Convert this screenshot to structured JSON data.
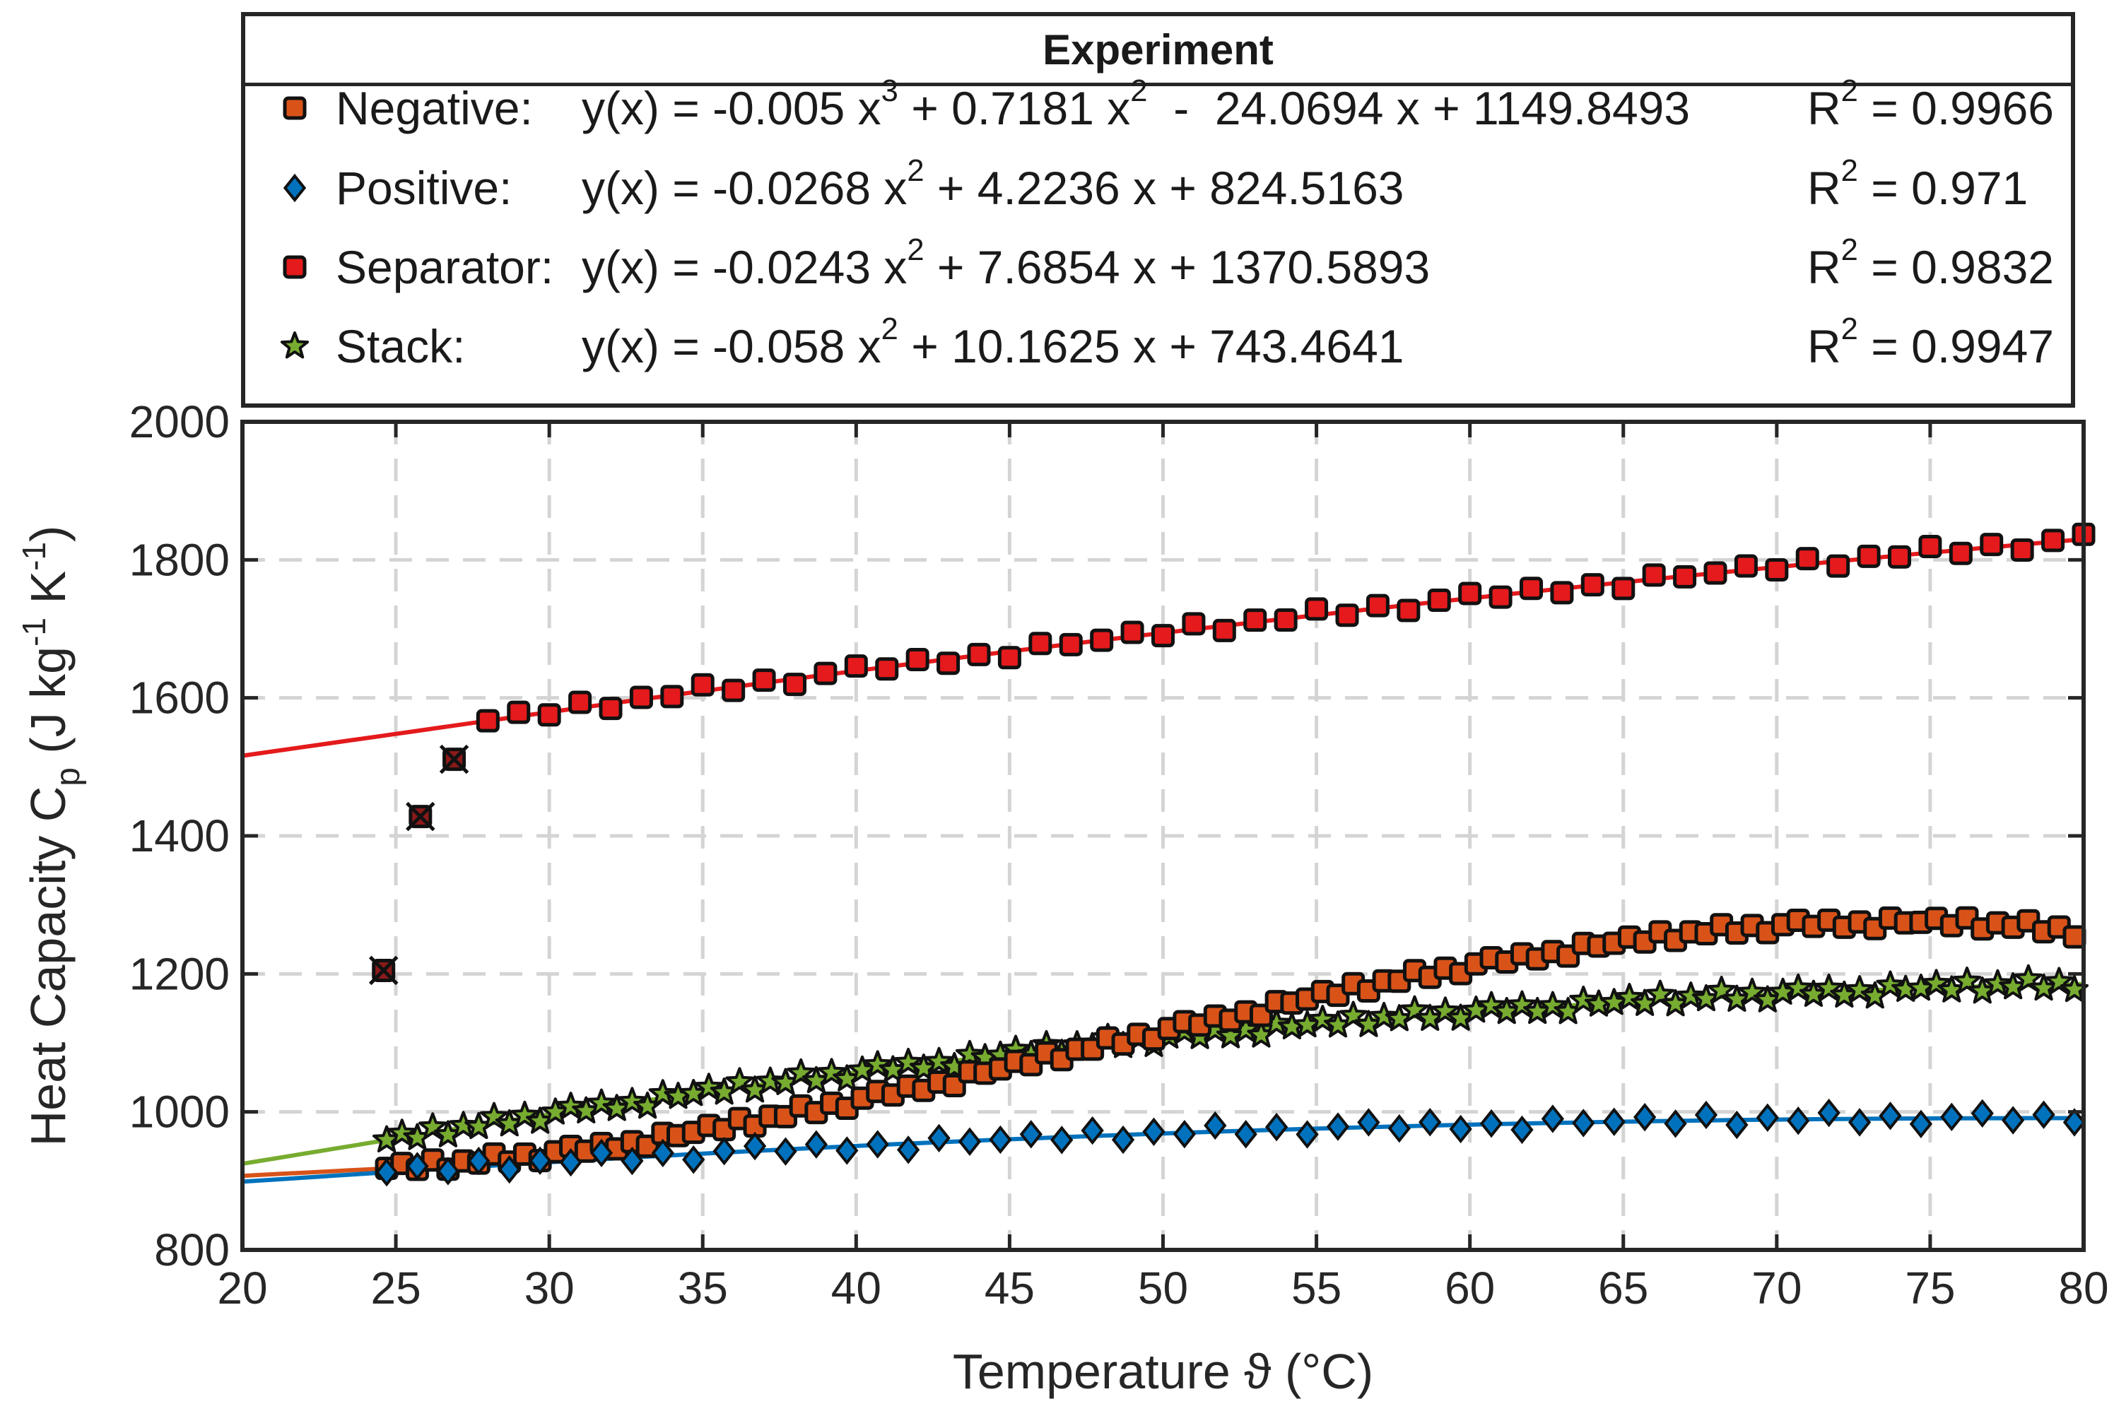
{
  "legend": {
    "title": "Experiment",
    "entries": [
      {
        "name": "Negative:",
        "marker": "square-icon",
        "color": "#D95319",
        "eq": [
          {
            "t": "y(x) = -0.005 x"
          },
          {
            "s": "3"
          },
          {
            "t": " + 0.7181 x"
          },
          {
            "s": "2"
          },
          {
            "t": "  -  24.0694 x + 1149.8493"
          }
        ],
        "r2_prefix": "R",
        "r2_sup": "2",
        "r2_value": " = 0.9966"
      },
      {
        "name": "Positive:",
        "marker": "diamond-icon",
        "color": "#0072BD",
        "eq": [
          {
            "t": "y(x) = -0.0268 x"
          },
          {
            "s": "2"
          },
          {
            "t": " + 4.2236 x + 824.5163"
          }
        ],
        "r2_prefix": "R",
        "r2_sup": "2",
        "r2_value": " = 0.971"
      },
      {
        "name": "Separator:",
        "marker": "square-icon",
        "color": "#E41A1C",
        "eq": [
          {
            "t": "y(x) = -0.0243 x"
          },
          {
            "s": "2"
          },
          {
            "t": " + 7.6854 x + 1370.5893"
          }
        ],
        "r2_prefix": "R",
        "r2_sup": "2",
        "r2_value": " = 0.9832"
      },
      {
        "name": "Stack:",
        "marker": "star-icon",
        "color": "#77AC30",
        "eq": [
          {
            "t": "y(x) = -0.058 x"
          },
          {
            "s": "2"
          },
          {
            "t": " + 10.1625 x + 743.4641"
          }
        ],
        "r2_prefix": "R",
        "r2_sup": "2",
        "r2_value": " = 0.9947"
      }
    ]
  },
  "chart_data": {
    "type": "scatter",
    "xlabel": "Temperature ϑ (°C)",
    "ylabel": "Heat Capacity C",
    "ylabel_sub": "p",
    "ylabel_unit": {
      "parts": [
        " (J kg",
        "-1",
        " K",
        "-1",
        ")"
      ]
    },
    "xlim": [
      20,
      80
    ],
    "ylim": [
      800,
      2000
    ],
    "xticks": [
      20,
      25,
      30,
      35,
      40,
      45,
      50,
      55,
      60,
      65,
      70,
      75,
      80
    ],
    "yticks": [
      800,
      1000,
      1200,
      1400,
      1600,
      1800,
      2000
    ],
    "grid": true,
    "legend_position": "above",
    "series": [
      {
        "name": "Negative",
        "marker": "square",
        "color": "#D95319",
        "fit": {
          "type": "poly",
          "coeffs": [
            -0.005,
            0.7181,
            -24.0694,
            1149.8493
          ]
        },
        "x_start": 24.7,
        "x_end": 80,
        "step": 0.5,
        "y_offset": 0
      },
      {
        "name": "Positive",
        "marker": "diamond",
        "color": "#0072BD",
        "fit": {
          "type": "poly",
          "coeffs": [
            -0.0268,
            4.2236,
            824.5163
          ]
        },
        "x_start": 24.7,
        "x_end": 80,
        "step": 1,
        "y_offset": 0
      },
      {
        "name": "Separator",
        "marker": "square",
        "color": "#E41A1C",
        "fit": {
          "type": "poly",
          "coeffs": [
            -0.0243,
            7.6854,
            1370.5893
          ]
        },
        "x_start": 28,
        "x_end": 80,
        "step": 1,
        "y_offset": 0
      },
      {
        "name": "Stack",
        "marker": "star",
        "color": "#77AC30",
        "fit": {
          "type": "poly",
          "coeffs": [
            -0.058,
            10.1625,
            743.4641
          ]
        },
        "x_start": 24.7,
        "x_end": 80,
        "step": 0.5,
        "y_offset": 0
      }
    ],
    "excluded_points": [
      {
        "x": 24.6,
        "y": 1205
      },
      {
        "x": 25.8,
        "y": 1428
      },
      {
        "x": 26.9,
        "y": 1511
      }
    ]
  }
}
